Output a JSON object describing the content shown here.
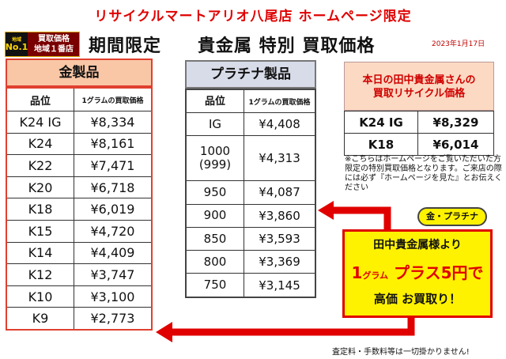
{
  "header": {
    "title": "リサイクルマートアリオ八尾店 ホームページ限定",
    "promo": "期間限定　　貴金属 特別 買取価格",
    "date": "2023年1月17日"
  },
  "badge": {
    "no1_top": "地域",
    "no1": "No.1",
    "line1": "買取価格",
    "line2": "地域１番店"
  },
  "gold": {
    "title": "金製品",
    "col1": "品位",
    "col2": "1グラムの買取価格",
    "rows": [
      {
        "k": "K24 IG",
        "p": "¥8,334"
      },
      {
        "k": "K24",
        "p": "¥8,161"
      },
      {
        "k": "K22",
        "p": "¥7,471"
      },
      {
        "k": "K20",
        "p": "¥6,718"
      },
      {
        "k": "K18",
        "p": "¥6,019"
      },
      {
        "k": "K15",
        "p": "¥4,720"
      },
      {
        "k": "K14",
        "p": "¥4,409"
      },
      {
        "k": "K12",
        "p": "¥3,747"
      },
      {
        "k": "K10",
        "p": "¥3,100"
      },
      {
        "k": "K9",
        "p": "¥2,773"
      }
    ]
  },
  "platinum": {
    "title": "プラチナ製品",
    "col1": "品位",
    "col2": "1グラムの買取価格",
    "rows": [
      {
        "k": "IG",
        "p": "¥4,408"
      },
      {
        "k": "1000\n(999)",
        "p": "¥4,313"
      },
      {
        "k": "950",
        "p": "¥4,087"
      },
      {
        "k": "900",
        "p": "¥3,860"
      },
      {
        "k": "850",
        "p": "¥3,593"
      },
      {
        "k": "800",
        "p": "¥3,369"
      },
      {
        "k": "750",
        "p": "¥3,145"
      }
    ]
  },
  "today": {
    "line1": "本日の田中貴金属さんの",
    "line2": "買取リサイクル価格",
    "rows": [
      {
        "k": "K24 IG",
        "p": "¥8,329"
      },
      {
        "k": "K18",
        "p": "¥6,014"
      }
    ]
  },
  "note": {
    "text": "※こちらはホームページをご覧いただいた方限定の特別買取価格となります。ご来店の際には必ず『ホームページを見た』とお伝えください"
  },
  "tag": "金・プラチナ",
  "promo_box": {
    "line1": "田中貴金属様より",
    "one": "1",
    "gram": "グラム",
    "plus": " プラス5円で",
    "line3": "高価 お買取り！"
  },
  "footer": "査定料・手数料等は一切掛かりません!",
  "colors": {
    "red": "#e00000",
    "yellow": "#fff200",
    "gold_bg": "#f9c7a6",
    "plat_bg": "#d8dbe8"
  }
}
